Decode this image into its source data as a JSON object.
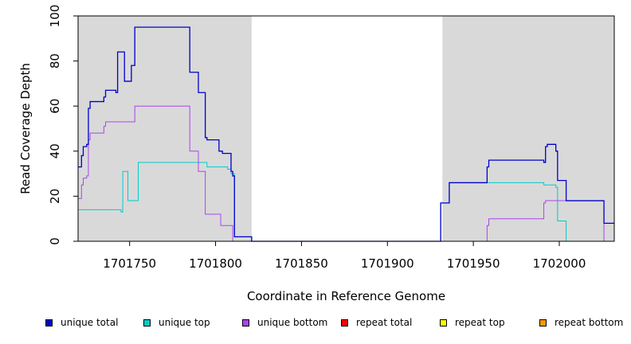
{
  "chart_data": {
    "type": "line",
    "title": "",
    "xlabel": "Coordinate in Reference Genome",
    "ylabel": "Read Coverage Depth",
    "xlim": [
      1701720,
      1702032
    ],
    "ylim": [
      0,
      100
    ],
    "x_ticks": [
      1701750,
      1701800,
      1701850,
      1701900,
      1701950,
      1702000
    ],
    "x_tick_labels": [
      "1701750",
      "1701800",
      "1701850",
      "1701900",
      "1701950",
      "1702000"
    ],
    "y_ticks": [
      0,
      20,
      40,
      60,
      80,
      100
    ],
    "y_tick_labels": [
      "0",
      "20",
      "40",
      "60",
      "80",
      "100"
    ],
    "shaded_regions": [
      [
        1701720,
        1701821
      ],
      [
        1701932,
        1702032
      ]
    ],
    "shade_color": "#d9d9d9",
    "grid": false,
    "legend_position": "bottom",
    "series": [
      {
        "name": "unique total",
        "color": "#0000cc",
        "points": [
          [
            1701720,
            33
          ],
          [
            1701722,
            38
          ],
          [
            1701723,
            42
          ],
          [
            1701725,
            43
          ],
          [
            1701726,
            59
          ],
          [
            1701727,
            62
          ],
          [
            1701735,
            64
          ],
          [
            1701736,
            67
          ],
          [
            1701742,
            66
          ],
          [
            1701743,
            84
          ],
          [
            1701747,
            71
          ],
          [
            1701751,
            78
          ],
          [
            1701753,
            95
          ],
          [
            1701785,
            75
          ],
          [
            1701790,
            66
          ],
          [
            1701794,
            46
          ],
          [
            1701795,
            45
          ],
          [
            1701802,
            40
          ],
          [
            1701804,
            39
          ],
          [
            1701809,
            31
          ],
          [
            1701810,
            29
          ],
          [
            1701811,
            2
          ],
          [
            1701821,
            0
          ],
          [
            1701931,
            17
          ],
          [
            1701936,
            26
          ],
          [
            1701958,
            33
          ],
          [
            1701959,
            36
          ],
          [
            1701991,
            35
          ],
          [
            1701992,
            42
          ],
          [
            1701993,
            43
          ],
          [
            1701998,
            40
          ],
          [
            1701999,
            27
          ],
          [
            1702004,
            18
          ],
          [
            1702026,
            8
          ],
          [
            1702032,
            8
          ]
        ]
      },
      {
        "name": "unique top",
        "color": "#00cccc",
        "points": [
          [
            1701720,
            14
          ],
          [
            1701745,
            13
          ],
          [
            1701746,
            31
          ],
          [
            1701749,
            18
          ],
          [
            1701755,
            35
          ],
          [
            1701795,
            33
          ],
          [
            1701807,
            32
          ],
          [
            1701809,
            30
          ],
          [
            1701811,
            2
          ],
          [
            1701821,
            0
          ],
          [
            1701931,
            17
          ],
          [
            1701936,
            26
          ],
          [
            1701991,
            25
          ],
          [
            1701998,
            24
          ],
          [
            1701999,
            9
          ],
          [
            1702004,
            0
          ],
          [
            1702032,
            0
          ]
        ]
      },
      {
        "name": "unique bottom",
        "color": "#aa44ee",
        "points": [
          [
            1701720,
            19
          ],
          [
            1701722,
            25
          ],
          [
            1701723,
            28
          ],
          [
            1701725,
            29
          ],
          [
            1701726,
            45
          ],
          [
            1701727,
            48
          ],
          [
            1701735,
            51
          ],
          [
            1701736,
            53
          ],
          [
            1701753,
            60
          ],
          [
            1701785,
            40
          ],
          [
            1701790,
            31
          ],
          [
            1701794,
            12
          ],
          [
            1701803,
            7
          ],
          [
            1701810,
            0
          ],
          [
            1701957,
            0
          ],
          [
            1701958,
            7
          ],
          [
            1701959,
            10
          ],
          [
            1701991,
            17
          ],
          [
            1701992,
            18
          ],
          [
            1702004,
            18
          ],
          [
            1702026,
            0
          ],
          [
            1702032,
            0
          ]
        ]
      },
      {
        "name": "repeat total",
        "color": "#ff0000",
        "points": [
          [
            1701720,
            0
          ],
          [
            1702032,
            0
          ]
        ]
      },
      {
        "name": "repeat top",
        "color": "#ffff00",
        "points": [
          [
            1701720,
            0
          ],
          [
            1702032,
            0
          ]
        ]
      },
      {
        "name": "repeat bottom",
        "color": "#ff9900",
        "points": [
          [
            1701720,
            0
          ],
          [
            1702032,
            0
          ]
        ]
      }
    ]
  }
}
